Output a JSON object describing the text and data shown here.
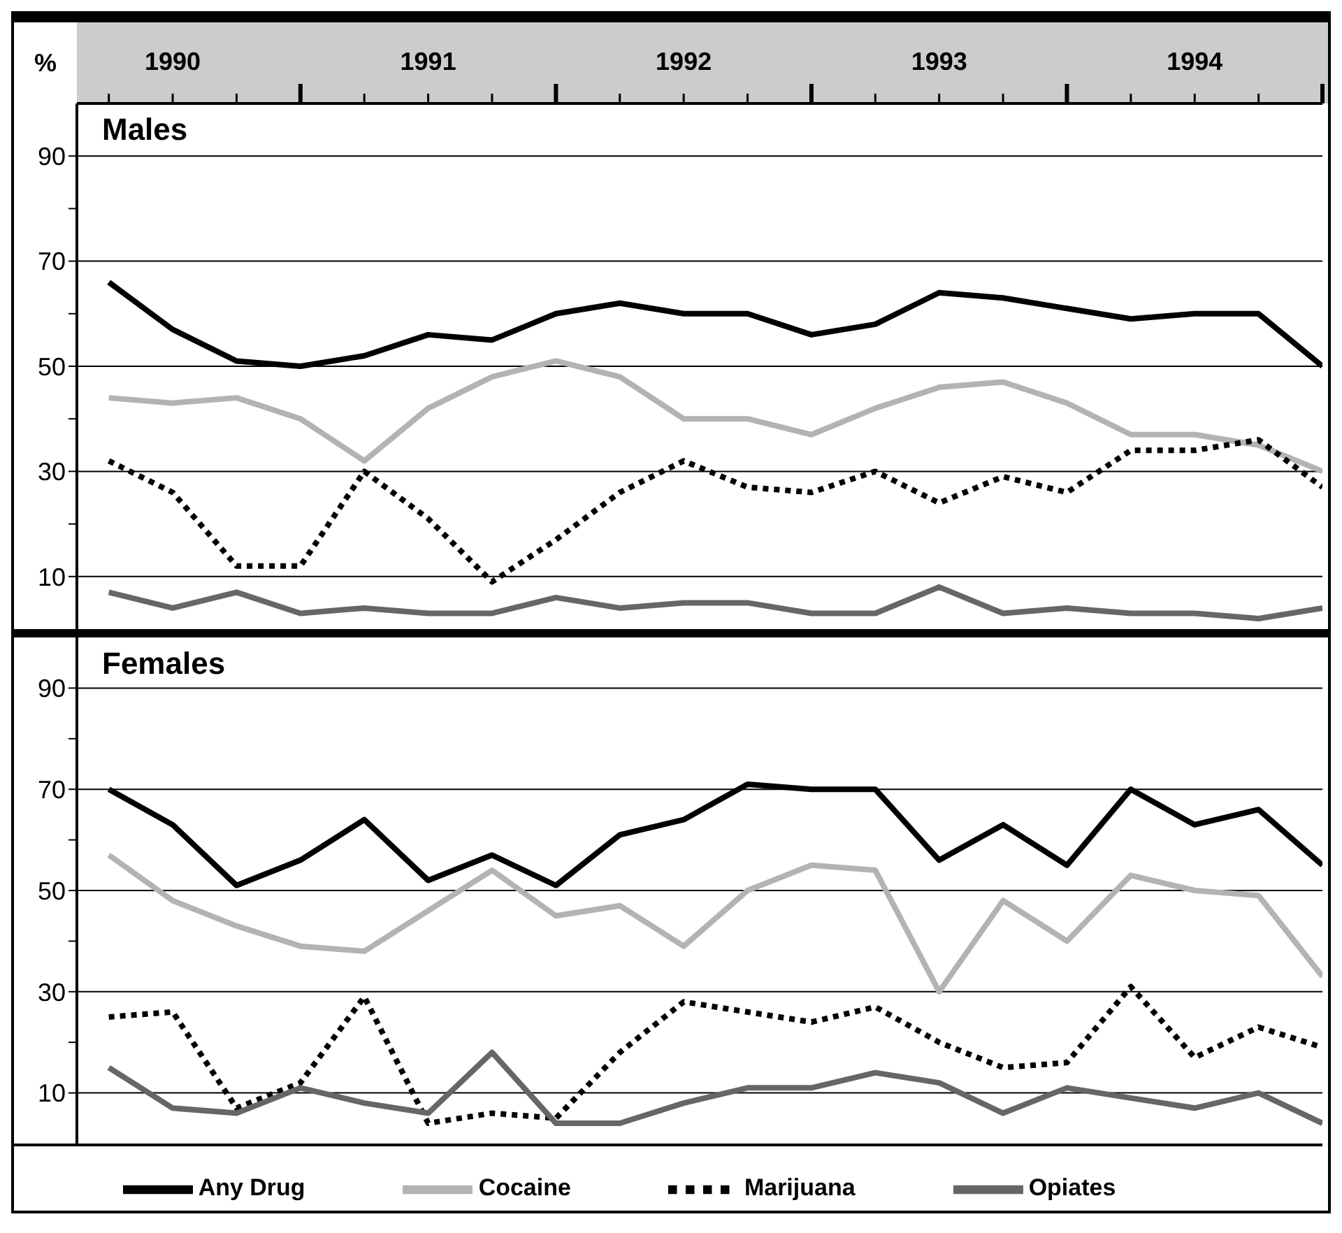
{
  "chart_data": [
    {
      "type": "line",
      "title": "Males",
      "ylabel": "%",
      "x": [
        1990.25,
        1990.5,
        1990.75,
        1991,
        1991.25,
        1991.5,
        1991.75,
        1992,
        1992.25,
        1992.5,
        1992.75,
        1993,
        1993.25,
        1993.5,
        1993.75,
        1994,
        1994.25,
        1994.5,
        1994.75,
        1995
      ],
      "series": [
        {
          "color": "#000000",
          "values": [
            66,
            57,
            51,
            50,
            52,
            56,
            55,
            60,
            62,
            60,
            60,
            56,
            58,
            64,
            63,
            61,
            59,
            60,
            60,
            50
          ]
        },
        {
          "color": "#b3b3b3",
          "values": [
            44,
            43,
            44,
            40,
            32,
            42,
            48,
            51,
            48,
            40,
            40,
            37,
            42,
            46,
            47,
            43,
            37,
            37,
            35,
            30
          ]
        },
        {
          "color": "#000000",
          "line_style": "dotted",
          "values": [
            32,
            26,
            12,
            12,
            30,
            21,
            9,
            17,
            26,
            32,
            27,
            26,
            30,
            24,
            29,
            26,
            34,
            34,
            36,
            27
          ]
        },
        {
          "color": "#666666",
          "values": [
            7,
            4,
            7,
            3,
            4,
            3,
            3,
            6,
            4,
            5,
            5,
            3,
            3,
            8,
            3,
            4,
            3,
            3,
            2,
            4
          ]
        }
      ],
      "xlim": [
        1990.125,
        1995
      ],
      "xticks": [
        {
          "value": 1990.25,
          "label": null
        },
        {
          "value": 1990.5,
          "label": "1990"
        },
        {
          "value": 1990.75,
          "label": null
        },
        {
          "value": 1991,
          "label": null
        },
        {
          "value": 1991.25,
          "label": null
        },
        {
          "value": 1991.5,
          "label": "1991"
        },
        {
          "value": 1991.75,
          "label": null
        },
        {
          "value": 1992,
          "label": null
        },
        {
          "value": 1992.25,
          "label": null
        },
        {
          "value": 1992.5,
          "label": "1992"
        },
        {
          "value": 1992.75,
          "label": null
        },
        {
          "value": 1993,
          "label": null
        },
        {
          "value": 1993.25,
          "label": null
        },
        {
          "value": 1993.5,
          "label": "1993"
        },
        {
          "value": 1993.75,
          "label": null
        },
        {
          "value": 1994,
          "label": null
        },
        {
          "value": 1994.25,
          "label": null
        },
        {
          "value": 1994.5,
          "label": "1994"
        },
        {
          "value": 1994.75,
          "label": null
        },
        {
          "value": 1995,
          "label": null
        }
      ],
      "ylim": [
        0,
        100
      ],
      "yticks": [
        10,
        {
          "value": 20,
          "label": null
        },
        30,
        {
          "value": 40,
          "label": null
        },
        50,
        {
          "value": 60,
          "label": null
        },
        70,
        {
          "value": 80,
          "label": null
        },
        90
      ],
      "grid": "y",
      "legend": false,
      "marker": "none"
    },
    {
      "type": "line",
      "title": "Females",
      "x": [
        1990.25,
        1990.5,
        1990.75,
        1991,
        1991.25,
        1991.5,
        1991.75,
        1992,
        1992.25,
        1992.5,
        1992.75,
        1993,
        1993.25,
        1993.5,
        1993.75,
        1994,
        1994.25,
        1994.5,
        1994.75,
        1995
      ],
      "series": [
        {
          "name": "Any Drug",
          "color": "#000000",
          "values": [
            70,
            63,
            51,
            56,
            64,
            52,
            57,
            51,
            61,
            64,
            71,
            70,
            70,
            56,
            63,
            55,
            70,
            63,
            66,
            55
          ]
        },
        {
          "name": "Cocaine",
          "color": "#b3b3b3",
          "values": [
            57,
            48,
            43,
            39,
            38,
            46,
            54,
            45,
            47,
            39,
            50,
            55,
            54,
            30,
            48,
            40,
            53,
            50,
            49,
            33
          ]
        },
        {
          "name": "Marijuana",
          "color": "#000000",
          "line_style": "dotted",
          "values": [
            25,
            26,
            7,
            12,
            29,
            4,
            6,
            5,
            18,
            28,
            26,
            24,
            27,
            20,
            15,
            16,
            31,
            17,
            23,
            19
          ]
        },
        {
          "name": "Opiates",
          "color": "#666666",
          "values": [
            15,
            7,
            6,
            11,
            8,
            6,
            18,
            4,
            4,
            8,
            11,
            11,
            14,
            12,
            6,
            11,
            9,
            7,
            10,
            4
          ]
        }
      ],
      "xlim": [
        1990.125,
        1995
      ],
      "ylim": [
        0,
        100
      ],
      "yticks": [
        10,
        {
          "value": 20,
          "label": null
        },
        30,
        {
          "value": 40,
          "label": null
        },
        50,
        {
          "value": 60,
          "label": null
        },
        70,
        {
          "value": 80,
          "label": null
        },
        90
      ],
      "tick_labels": "y",
      "grid": "y",
      "legend": "bottom",
      "marker": "none"
    }
  ]
}
